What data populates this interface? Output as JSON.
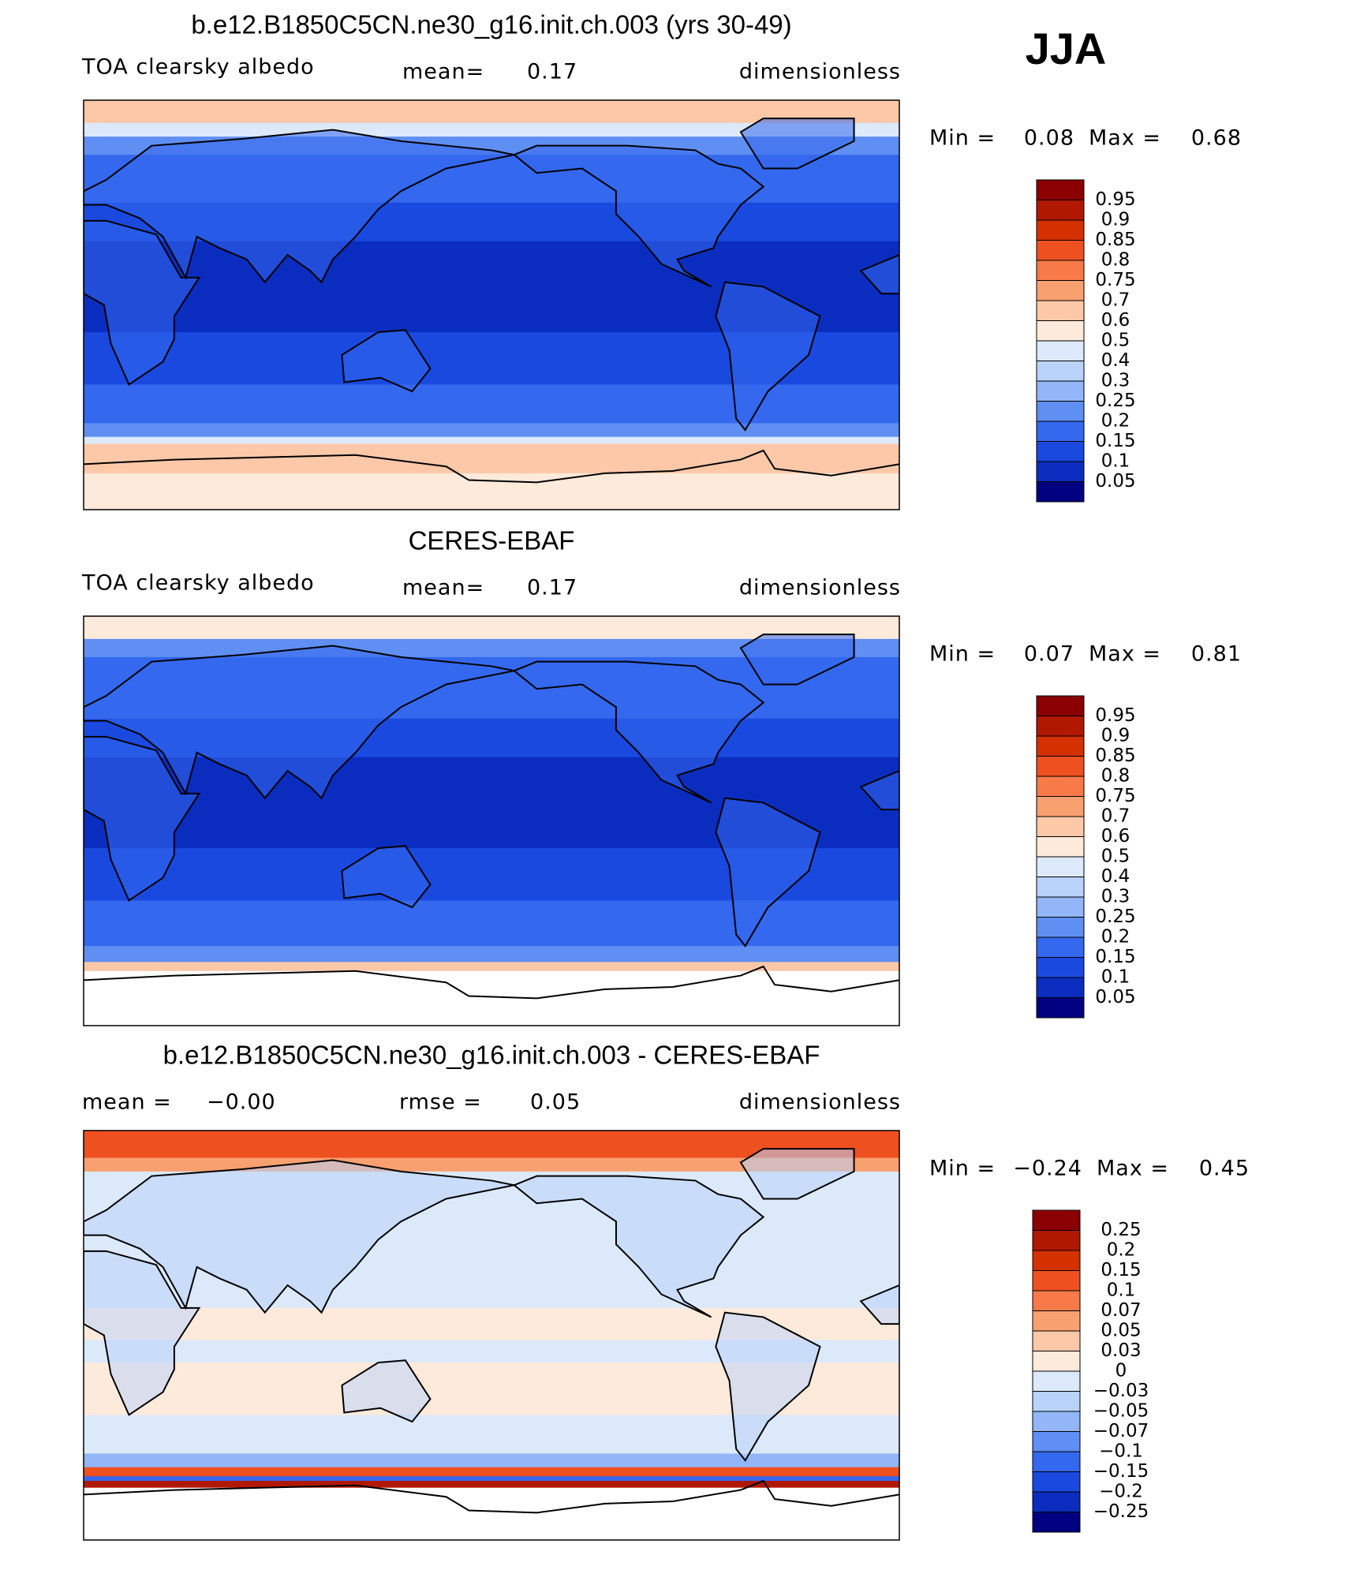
{
  "title": "b.e12.B1850C5CN.ne30_g16.init.ch.003 (yrs 30-49)",
  "season": "JJA",
  "panels": [
    {
      "title": "b.e12.B1850C5CN.ne30_g16.init.ch.003 (yrs 30-49)",
      "variable": "TOA clearsky albedo",
      "stat1_label": "mean=",
      "stat1_value": "0.17",
      "units": "dimensionless",
      "min_label": "Min =",
      "min": "0.08",
      "max_label": "Max =",
      "max": "0.68",
      "colorbar": [
        "0.95",
        "0.9",
        "0.85",
        "0.8",
        "0.75",
        "0.7",
        "0.6",
        "0.5",
        "0.4",
        "0.3",
        "0.25",
        "0.2",
        "0.15",
        "0.1",
        "0.05"
      ]
    },
    {
      "title": "CERES-EBAF",
      "variable": "TOA clearsky albedo",
      "stat1_label": "mean=",
      "stat1_value": "0.17",
      "units": "dimensionless",
      "min_label": "Min =",
      "min": "0.07",
      "max_label": "Max =",
      "max": "0.81",
      "colorbar": [
        "0.95",
        "0.9",
        "0.85",
        "0.8",
        "0.75",
        "0.7",
        "0.6",
        "0.5",
        "0.4",
        "0.3",
        "0.25",
        "0.2",
        "0.15",
        "0.1",
        "0.05"
      ]
    },
    {
      "title": "b.e12.B1850C5CN.ne30_g16.init.ch.003 - CERES-EBAF",
      "stat1_label": "mean =",
      "stat1_value": "−0.00",
      "stat2_label": "rmse =",
      "stat2_value": "0.05",
      "units": "dimensionless",
      "min_label": "Min =",
      "min": "−0.24",
      "max_label": "Max =",
      "max": "0.45",
      "colorbar": [
        "0.25",
        "0.2",
        "0.15",
        "0.1",
        "0.07",
        "0.05",
        "0.03",
        "0",
        "−0.03",
        "−0.05",
        "−0.07",
        "−0.1",
        "−0.15",
        "−0.2",
        "−0.25"
      ]
    }
  ],
  "colorbar_colors": [
    "#8b0000",
    "#b01800",
    "#d53000",
    "#ef5020",
    "#f87a48",
    "#f9a070",
    "#fcc8a8",
    "#feeadb",
    "#dce9fb",
    "#b9d2fa",
    "#92b6f7",
    "#5f8ff2",
    "#3468ef",
    "#1a49e0",
    "#0b2dbf",
    "#000080"
  ]
}
